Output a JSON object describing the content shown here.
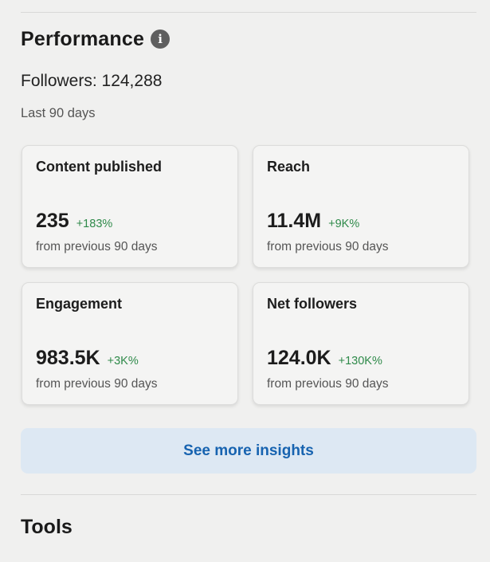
{
  "performance": {
    "title": "Performance",
    "info_icon": "info-icon",
    "followers_text": "Followers: 124,288",
    "period": "Last 90 days",
    "cards": [
      {
        "label": "Content published",
        "value": "235",
        "change": "+183%",
        "sub": "from previous 90 days"
      },
      {
        "label": "Reach",
        "value": "11.4M",
        "change": "+9K%",
        "sub": "from previous 90 days"
      },
      {
        "label": "Engagement",
        "value": "983.5K",
        "change": "+3K%",
        "sub": "from previous 90 days"
      },
      {
        "label": "Net followers",
        "value": "124.0K",
        "change": "+130K%",
        "sub": "from previous 90 days"
      }
    ],
    "insights_button": "See more insights"
  },
  "tools": {
    "title": "Tools"
  },
  "colors": {
    "background": "#f0f0ef",
    "positive_change": "#2f8a4a",
    "link_blue": "#1763b0",
    "button_bg": "#dde8f3"
  }
}
